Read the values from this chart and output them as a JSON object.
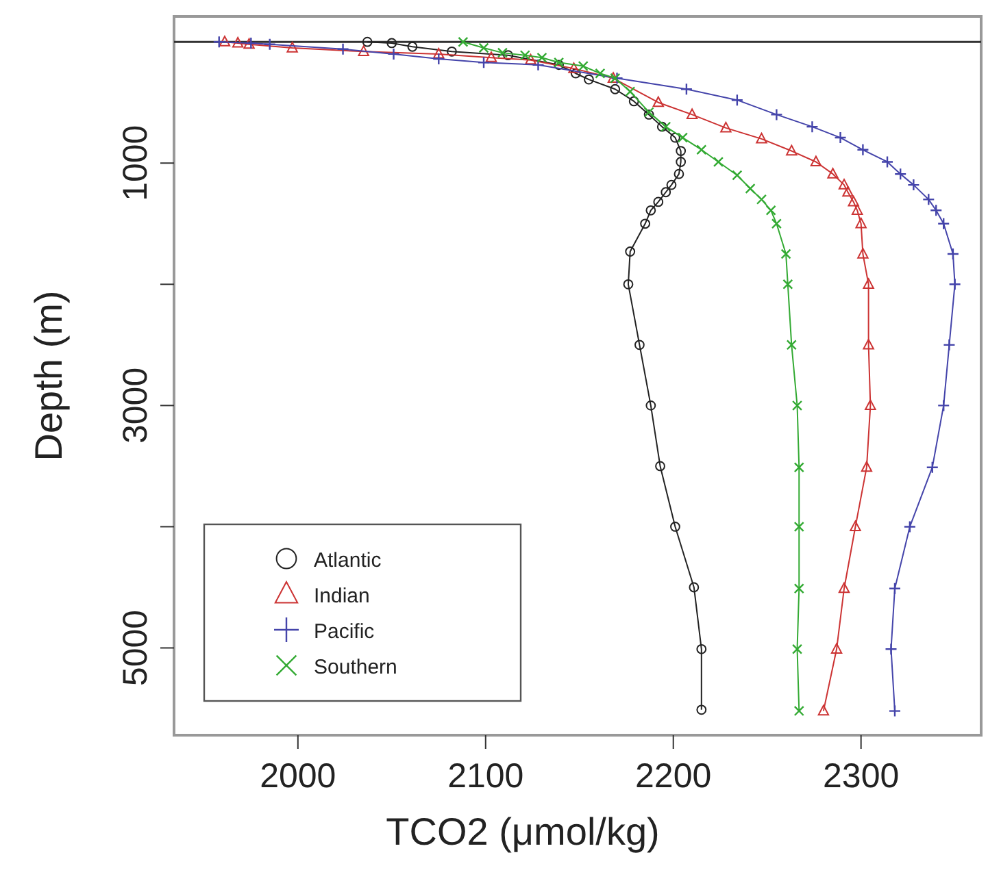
{
  "chart_data": {
    "type": "line",
    "xlabel": "TCO2 (μmol/kg)",
    "ylabel": "Depth (m)",
    "xlim": [
      1934,
      2364
    ],
    "xticks": [
      2000,
      2100,
      2200,
      2300
    ],
    "ylim": [
      5720,
      -210
    ],
    "yticks": [
      1000,
      {
        "value": 2000,
        "label": null
      },
      3000,
      {
        "value": 4000,
        "label": null
      },
      5000
    ],
    "grid": false,
    "legend": "bottom left",
    "line_style": "solid",
    "ref_lines": [
      {
        "axis": "y",
        "value": 0,
        "color": "#333333"
      }
    ],
    "series": [
      {
        "name": "Atlantic",
        "color": "#222222",
        "marker": "circle",
        "x": [
          2037,
          2050,
          2061,
          2082,
          2112,
          2139,
          2148,
          2155,
          2169,
          2179,
          2187,
          2194,
          2201,
          2204,
          2204,
          2203,
          2199,
          2196,
          2192,
          2188,
          2185,
          2177,
          2176,
          2182,
          2188,
          2193,
          2201,
          2211,
          2215,
          2215
        ],
        "values": [
          0,
          10,
          40,
          80,
          110,
          190,
          260,
          310,
          390,
          490,
          600,
          700,
          790,
          900,
          990,
          1090,
          1180,
          1240,
          1320,
          1390,
          1500,
          1730,
          2000,
          2500,
          3000,
          3500,
          4000,
          4500,
          5010,
          5510
        ]
      },
      {
        "name": "Indian",
        "color": "#cc3333",
        "marker": "triangle",
        "x": [
          1961,
          1968,
          1974,
          1997,
          2035,
          2075,
          2103,
          2124,
          2147,
          2168,
          2192,
          2210,
          2228,
          2247,
          2263,
          2276,
          2285,
          2291,
          2293,
          2296,
          2298,
          2300,
          2301,
          2304,
          2304,
          2305,
          2303,
          2297,
          2291,
          2287,
          2280
        ],
        "values": [
          0,
          10,
          20,
          50,
          80,
          100,
          130,
          150,
          220,
          300,
          500,
          600,
          710,
          800,
          900,
          990,
          1090,
          1180,
          1240,
          1320,
          1390,
          1500,
          1750,
          2000,
          2500,
          3000,
          3510,
          4000,
          4510,
          5010,
          5520
        ]
      },
      {
        "name": "Pacific",
        "color": "#4444aa",
        "marker": "plus",
        "x": [
          1958,
          1975,
          1985,
          2024,
          2051,
          2075,
          2099,
          2128,
          2170,
          2207,
          2234,
          2255,
          2274,
          2289,
          2301,
          2314,
          2321,
          2328,
          2336,
          2340,
          2344,
          2349,
          2350,
          2347,
          2344,
          2338,
          2326,
          2318,
          2316,
          2318
        ],
        "values": [
          0,
          10,
          20,
          60,
          100,
          140,
          170,
          190,
          300,
          390,
          480,
          600,
          700,
          790,
          890,
          990,
          1090,
          1180,
          1300,
          1390,
          1500,
          1750,
          2000,
          2500,
          3000,
          3510,
          4000,
          4510,
          5010,
          5520
        ]
      },
      {
        "name": "Southern",
        "color": "#33aa33",
        "marker": "cross",
        "x": [
          2088,
          2099,
          2109,
          2121,
          2130,
          2139,
          2152,
          2161,
          2169,
          2177,
          2187,
          2196,
          2205,
          2215,
          2224,
          2234,
          2241,
          2247,
          2252,
          2255,
          2260,
          2261,
          2263,
          2266,
          2267,
          2267,
          2267,
          2266,
          2267
        ],
        "values": [
          0,
          50,
          90,
          110,
          130,
          170,
          200,
          260,
          300,
          410,
          580,
          700,
          790,
          890,
          990,
          1100,
          1210,
          1300,
          1390,
          1500,
          1750,
          2000,
          2500,
          3000,
          3510,
          4000,
          4510,
          5010,
          5520
        ]
      }
    ]
  }
}
